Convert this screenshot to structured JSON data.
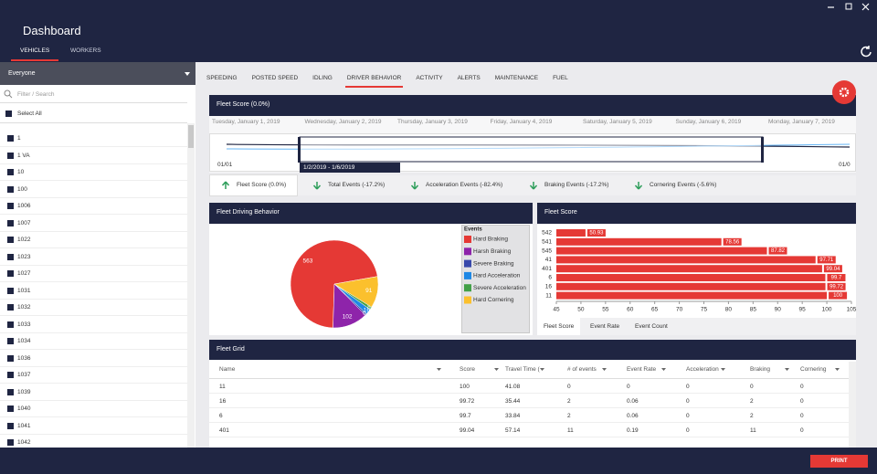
{
  "header": {
    "title": "Dashboard",
    "tabs": [
      "VEHICLES",
      "WORKERS"
    ]
  },
  "sidebar": {
    "group": "Everyone",
    "search_placeholder": "Filter / Search",
    "select_all": "Select All",
    "items": [
      "1",
      "1 VA",
      "10",
      "100",
      "1006",
      "1007",
      "1022",
      "1023",
      "1027",
      "1031",
      "1032",
      "1033",
      "1034",
      "1036",
      "1037",
      "1039",
      "1040",
      "1041",
      "1042"
    ]
  },
  "tabs": [
    "SPEEDING",
    "POSTED SPEED",
    "IDLING",
    "DRIVER BEHAVIOR",
    "ACTIVITY",
    "ALERTS",
    "MAINTENANCE",
    "FUEL"
  ],
  "active_tab": 3,
  "fleet_score": {
    "title": "Fleet Score  (0.0%)",
    "dates": [
      "Tuesday, January 1, 2019",
      "Wednesday, January 2, 2019",
      "Thursday, January 3, 2019",
      "Friday, January 4, 2019",
      "Saturday, January 5, 2019",
      "Sunday, January 6, 2019",
      "Monday, January 7, 2019"
    ],
    "timeline": {
      "start_label": "01/01",
      "end_label": "01/0",
      "range_label": "1/2/2019 - 1/6/2019"
    }
  },
  "trends": [
    {
      "label": "Fleet Score (0.0%)",
      "direction": "up"
    },
    {
      "label": "Total Events (-17.2%)",
      "direction": "down"
    },
    {
      "label": "Acceleration Events (-82.4%)",
      "direction": "down"
    },
    {
      "label": "Braking Events (-17.2%)",
      "direction": "down"
    },
    {
      "label": "Cornering Events (-5.6%)",
      "direction": "down"
    }
  ],
  "behavior": {
    "title": "Fleet Driving Behavior",
    "chart": {
      "type": "pie",
      "legend_title": "Events",
      "categories": [
        "Hard Braking",
        "Harsh Braking",
        "Severe Braking",
        "Hard Acceleration",
        "Severe Acceleration",
        "Hard Cornering"
      ],
      "values": [
        563,
        102,
        5,
        16,
        8,
        91
      ],
      "colors": [
        "#e53935",
        "#8e24aa",
        "#3949ab",
        "#1e88e5",
        "#43a047",
        "#fbc02d"
      ]
    }
  },
  "score_chart": {
    "title": "Fleet Score",
    "chart": {
      "type": "bar",
      "orientation": "horizontal",
      "categories": [
        "542",
        "541",
        "545",
        "41",
        "401",
        "6",
        "16",
        "11"
      ],
      "values": [
        50.93,
        78.56,
        87.82,
        97.71,
        99.04,
        99.7,
        99.72,
        100
      ],
      "color": "#e53935",
      "xlim": [
        45,
        105
      ],
      "xticks": [
        45,
        50,
        55,
        60,
        65,
        70,
        75,
        80,
        85,
        90,
        95,
        100,
        105
      ]
    },
    "tabs": [
      "Fleet Score",
      "Event Rate",
      "Event Count"
    ]
  },
  "grid": {
    "title": "Fleet Grid",
    "columns": [
      "Name",
      "Score",
      "Travel Time (",
      "# of events",
      "Event Rate",
      "Acceleration",
      "Braking",
      "Cornering"
    ],
    "rows": [
      [
        "11",
        100,
        41.08,
        0,
        0,
        0,
        0,
        0
      ],
      [
        "16",
        99.72,
        35.44,
        2,
        0.06,
        0,
        2,
        0
      ],
      [
        "6",
        99.7,
        33.84,
        2,
        0.06,
        0,
        2,
        0
      ],
      [
        "401",
        99.04,
        57.14,
        11,
        0.19,
        0,
        11,
        0
      ]
    ]
  },
  "footer": {
    "print": "PRINT"
  }
}
